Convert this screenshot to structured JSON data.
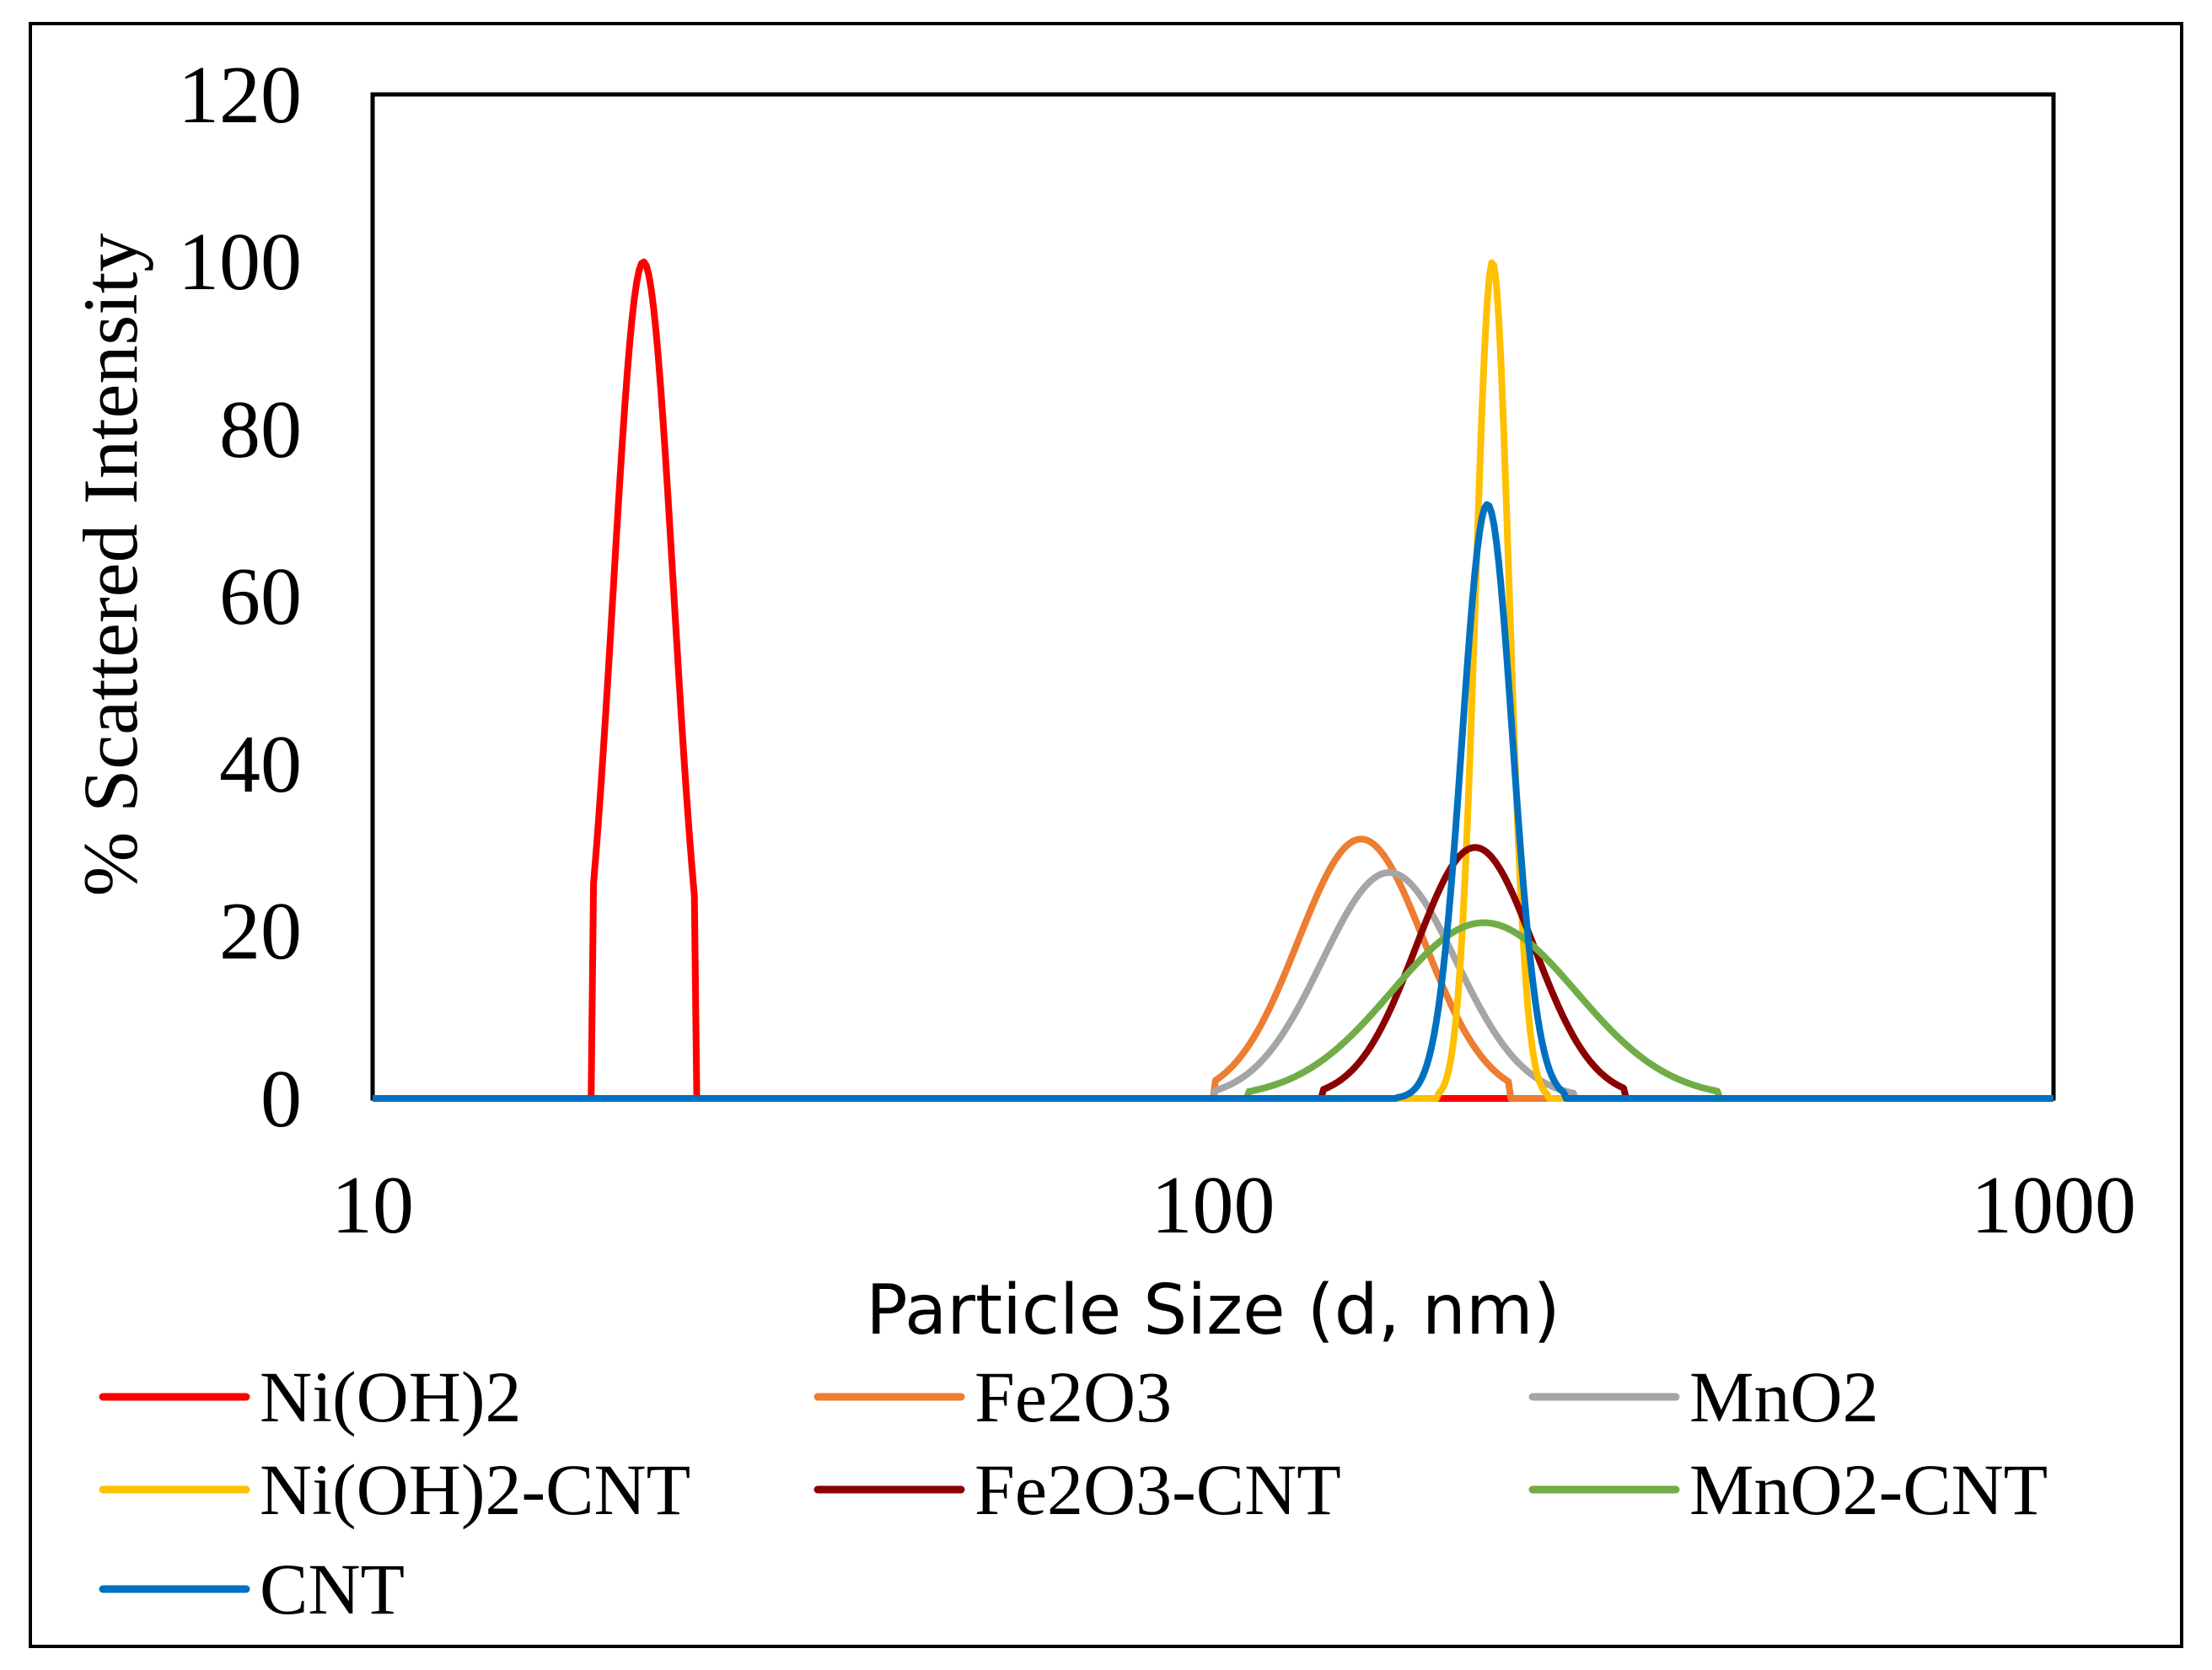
{
  "chart_data": {
    "type": "line",
    "title": "",
    "xlabel": "Particle Size (d, nm)",
    "ylabel": "% Scattered Intensity",
    "xscale": "log",
    "xlim": [
      10,
      1000
    ],
    "ylim": [
      0,
      120
    ],
    "xticks": [
      10,
      100,
      1000
    ],
    "xtick_labels": [
      "10",
      "100",
      "1000"
    ],
    "yticks": [
      0,
      20,
      40,
      60,
      80,
      100,
      120
    ],
    "ytick_labels": [
      "0",
      "20",
      "40",
      "60",
      "80",
      "100",
      "120"
    ],
    "grid": false,
    "legend_position": "bottom",
    "series": [
      {
        "name": "Ni(OH)2",
        "color": "#ff0000",
        "peak": 21,
        "height": 100,
        "sigma": 0.036,
        "range": [
          18.2,
          24.2
        ]
      },
      {
        "name": "Fe2O3",
        "color": "#ed7d31",
        "peak": 150,
        "height": 31,
        "sigma": 0.075,
        "range": [
          100,
          225
        ]
      },
      {
        "name": "MnO2",
        "color": "#a5a5a5",
        "peak": 162,
        "height": 27,
        "sigma": 0.08,
        "range": [
          100,
          270
        ]
      },
      {
        "name": "Ni(OH)2-CNT",
        "color": "#ffc000",
        "peak": 215,
        "height": 100,
        "sigma": 0.02,
        "range": [
          185,
          250
        ]
      },
      {
        "name": "Fe2O3-CNT",
        "color": "#8b0000",
        "peak": 205,
        "height": 30,
        "sigma": 0.07,
        "range": [
          135,
          310
        ]
      },
      {
        "name": "MnO2-CNT",
        "color": "#70ad47",
        "peak": 210,
        "height": 21,
        "sigma": 0.11,
        "range": [
          110,
          400
        ]
      },
      {
        "name": "CNT",
        "color": "#0070c0",
        "peak": 212,
        "height": 71,
        "sigma": 0.03,
        "range": [
          165,
          262
        ]
      }
    ]
  }
}
